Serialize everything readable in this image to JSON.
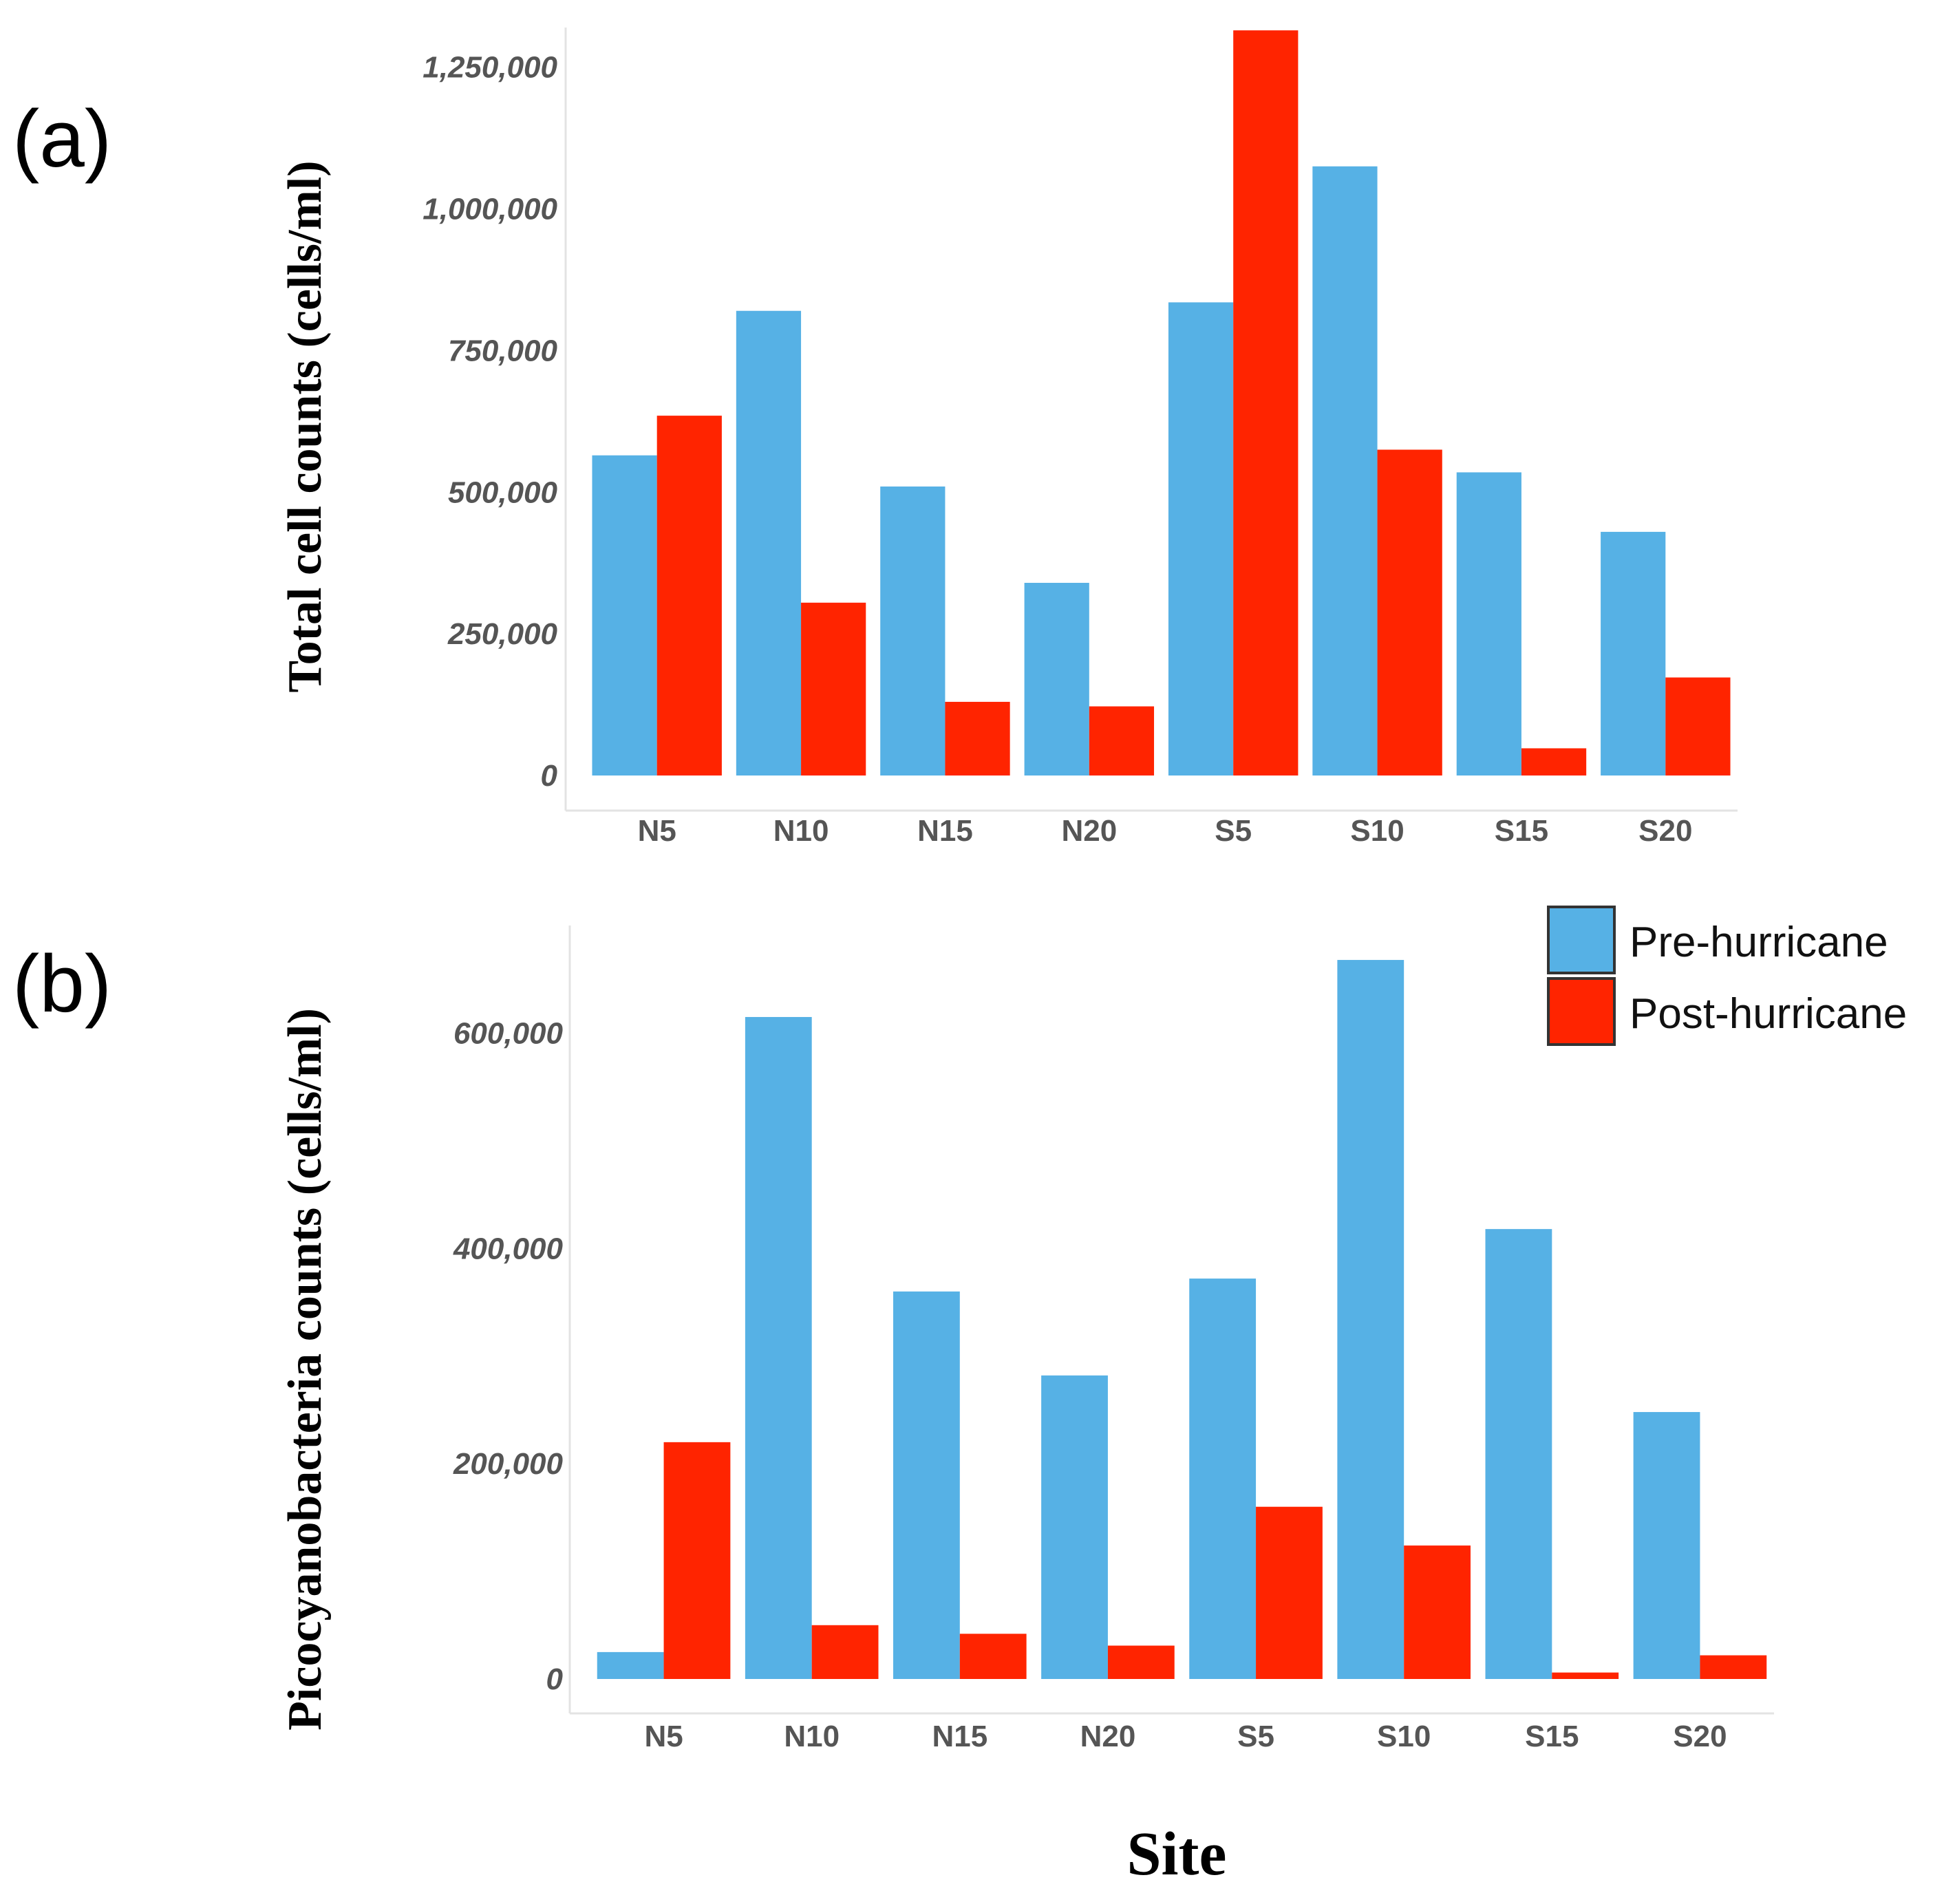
{
  "figure": {
    "x_axis_label": "Site",
    "colors": {
      "pre": "#56B1E5",
      "post": "#FF2400"
    }
  },
  "legend": {
    "pre_label": "Pre-hurricane",
    "post_label": "Post-hurricane"
  },
  "chart_data": [
    {
      "type": "bar",
      "panel_label": "(a)",
      "title": "",
      "xlabel": "Site",
      "ylabel": "Total cell counts (cells/ml)",
      "categories": [
        "N5",
        "N10",
        "N15",
        "N20",
        "S5",
        "S10",
        "S15",
        "S20"
      ],
      "ylim": [
        0,
        1320000
      ],
      "yticks": [
        0,
        250000,
        500000,
        750000,
        1000000,
        1250000
      ],
      "ytick_labels": [
        "0",
        "250,000",
        "500,000",
        "750,000",
        "1,000,000",
        "1,250,000"
      ],
      "series": [
        {
          "name": "Pre-hurricane",
          "color": "#56B1E5",
          "values": [
            565000,
            820000,
            510000,
            340000,
            835000,
            1075000,
            535000,
            430000
          ]
        },
        {
          "name": "Post-hurricane",
          "color": "#FF2400",
          "values": [
            635000,
            305000,
            130000,
            122000,
            1315000,
            575000,
            48000,
            173000
          ]
        }
      ]
    },
    {
      "type": "bar",
      "panel_label": "(b)",
      "title": "",
      "xlabel": "Site",
      "ylabel": "Picocyanobacteria counts (cells/ml)",
      "categories": [
        "N5",
        "N10",
        "N15",
        "N20",
        "S5",
        "S10",
        "S15",
        "S20"
      ],
      "ylim": [
        0,
        700000
      ],
      "yticks": [
        0,
        200000,
        400000,
        600000
      ],
      "ytick_labels": [
        "0",
        "200,000",
        "400,000",
        "600,000"
      ],
      "series": [
        {
          "name": "Pre-hurricane",
          "color": "#56B1E5",
          "values": [
            25000,
            615000,
            360000,
            282000,
            372000,
            668000,
            418000,
            248000
          ]
        },
        {
          "name": "Post-hurricane",
          "color": "#FF2400",
          "values": [
            220000,
            50000,
            42000,
            31000,
            160000,
            124000,
            6000,
            22000
          ]
        }
      ]
    }
  ]
}
